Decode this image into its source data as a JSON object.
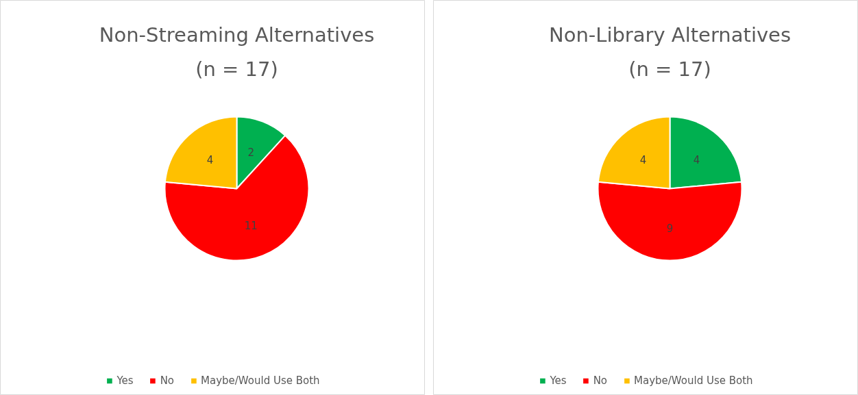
{
  "chart_data": [
    {
      "type": "pie",
      "title": "Non-Streaming Alternatives",
      "subtitle": "(n = 17)",
      "categories": [
        "Yes",
        "No",
        "Maybe/Would Use Both"
      ],
      "values": [
        2,
        11,
        4
      ],
      "colors": [
        "#00b050",
        "#ff0000",
        "#ffc000"
      ],
      "data_labels": true,
      "legend": "bottom"
    },
    {
      "type": "pie",
      "title": "Non-Library Alternatives",
      "subtitle": "(n = 17)",
      "categories": [
        "Yes",
        "No",
        "Maybe/Would Use Both"
      ],
      "values": [
        4,
        9,
        4
      ],
      "colors": [
        "#00b050",
        "#ff0000",
        "#ffc000"
      ],
      "data_labels": true,
      "legend": "bottom"
    }
  ]
}
